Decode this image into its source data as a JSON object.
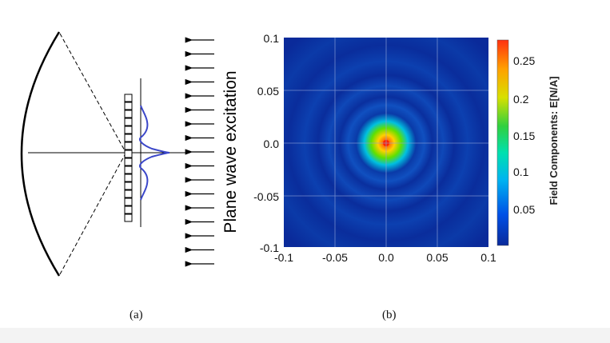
{
  "panel_a": {
    "label": "Plane wave excitation",
    "caption": "(a)",
    "stroke_color": "#000000",
    "curve_color": "#3b47c9",
    "arrow_count": 17
  },
  "panel_b": {
    "caption": "(b)",
    "chart_data": {
      "type": "heatmap",
      "description_source": "field intensity map (focal spot with concentric rings)",
      "x_ticks": [
        "-0.1",
        "-0.05",
        "0.0",
        "0.05",
        "0.1"
      ],
      "y_ticks": [
        "0.1",
        "0.05",
        "0.0",
        "-0.05",
        "-0.1"
      ],
      "xlim": [
        -0.1,
        0.1
      ],
      "ylim": [
        -0.1,
        0.1
      ],
      "grid": true,
      "peak": {
        "x": 0.0,
        "y": 0.0,
        "value": 0.28
      },
      "colorbar": {
        "label": "Field Components: E[N/A]",
        "ticks": [
          "0.25",
          "0.2",
          "0.15",
          "0.1",
          "0.05"
        ],
        "range": [
          0,
          0.28
        ],
        "colors": [
          "#0a2a9a",
          "#0050e6",
          "#00b4f0",
          "#00e0b0",
          "#30d040",
          "#d8e000",
          "#ffa000",
          "#ff3010"
        ]
      },
      "background_color": "#0a2a9a"
    }
  }
}
